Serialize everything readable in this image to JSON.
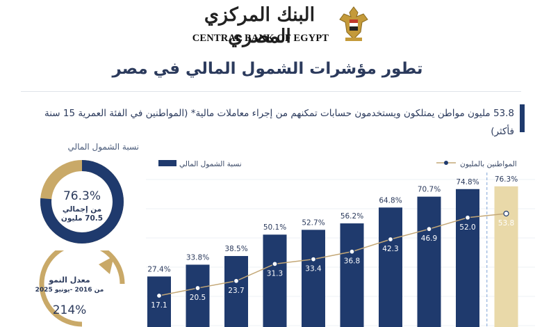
{
  "header": {
    "logo_arabic": "البنك المركزي المصري",
    "logo_english": "CENTRAL BANK OF EGYPT",
    "title": "تطور مؤشرات الشمول المالي في مصر"
  },
  "subtitle": "53.8 مليون مواطن يمتلكون ويستخدمون حسابات تمكنهم من إجراء معاملات مالية* (المواطنين في الفئة العمرية 15 سنة فأكثر)",
  "donut": {
    "title": "نسبة الشمول المالي",
    "percent_label": "76.3%",
    "sub_line1": "من إجمالي",
    "sub_line2": "70.5 مليون",
    "fraction": 0.763,
    "ring_color": "#1f3a6d",
    "remainder_color": "#c9a968"
  },
  "growth": {
    "line1": "معدل النمو",
    "line2": "من 2016 -يونيو 2025",
    "value": "214%",
    "arrow_color": "#c9a968"
  },
  "colors": {
    "bar": "#1f3a6d",
    "highlight_bar": "#e9d9a9",
    "line": "#c4a877",
    "point": "#1f3a6d"
  },
  "chart_data": {
    "type": "bar",
    "legend": [
      "نسبة الشمول المالي",
      "المواطنين بالمليون"
    ],
    "legend_placement": "top",
    "series": [
      {
        "name": "نسبة الشمول المالي",
        "type": "bar",
        "values": [
          27.4,
          33.8,
          38.5,
          50.1,
          52.7,
          56.2,
          64.8,
          70.7,
          74.8,
          76.3
        ],
        "labels": [
          "27.4%",
          "33.8%",
          "38.5%",
          "50.1%",
          "52.7%",
          "56.2%",
          "64.8%",
          "70.7%",
          "74.8%",
          "76.3%"
        ]
      },
      {
        "name": "المواطنين بالمليون",
        "type": "line",
        "values": [
          17.1,
          20.5,
          23.7,
          31.3,
          33.4,
          36.8,
          42.3,
          46.9,
          52.0,
          53.8
        ],
        "labels": [
          "17.1",
          "20.5",
          "23.7",
          "31.3",
          "33.4",
          "36.8",
          "42.3",
          "46.9",
          "52.0",
          "53.8"
        ]
      }
    ],
    "highlight_index": 9,
    "grid": true
  }
}
